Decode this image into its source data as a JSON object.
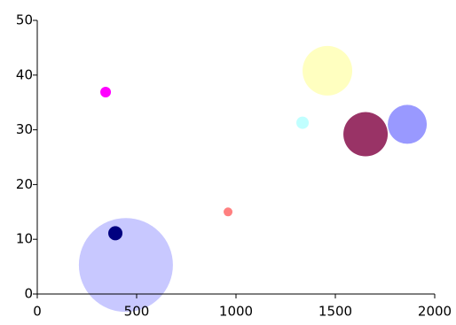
{
  "chart_data": {
    "type": "bubble",
    "x": [
      446,
      393,
      344,
      960,
      1460,
      1335,
      1652,
      1862
    ],
    "values": [
      5.3,
      11.1,
      36.9,
      15.0,
      40.8,
      31.3,
      29.2,
      31.0
    ],
    "sizes": [
      53,
      8,
      6,
      5,
      28,
      7,
      25,
      22
    ],
    "colors": [
      "#c8c8ff",
      "#000080",
      "#ff00ff",
      "#ff8080",
      "#ffffc0",
      "#c0ffff",
      "#993366",
      "#9999ff"
    ],
    "xlim": [
      0,
      2000
    ],
    "xticks": [
      0,
      500,
      1000,
      1500,
      2000
    ],
    "ylim": [
      0,
      50
    ],
    "yticks": [
      0,
      10,
      20,
      30,
      40,
      50
    ]
  }
}
